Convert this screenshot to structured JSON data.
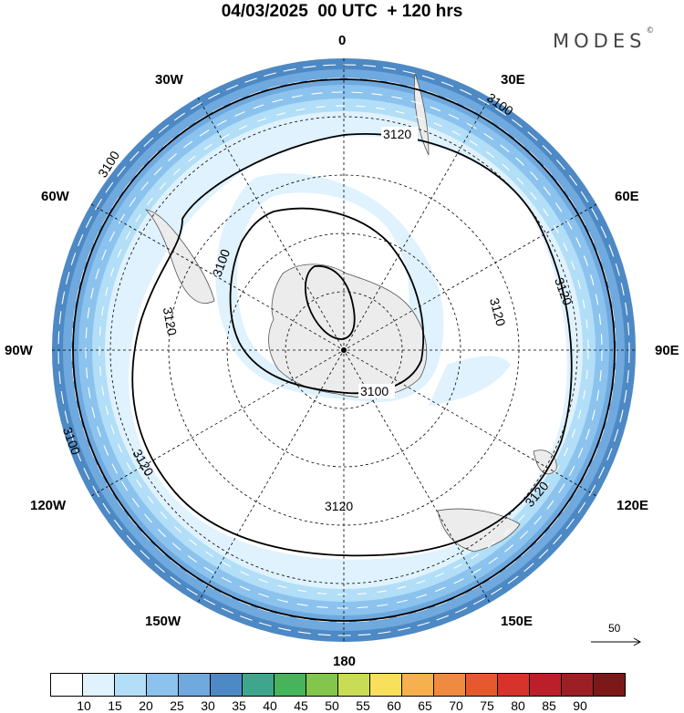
{
  "title": "04/03/2025  00 UTC  + 120 hrs",
  "brand": {
    "name": "MODES",
    "mark": "©"
  },
  "map": {
    "projection": "south polar stereographic",
    "longitude_labels": [
      "0",
      "30E",
      "60E",
      "90E",
      "120E",
      "150E",
      "180",
      "150W",
      "120W",
      "90W",
      "60W",
      "30W"
    ],
    "contour_labels": [
      "3100",
      "3120"
    ],
    "shading_colors": [
      "#dff2fd",
      "#b2def7",
      "#8bc3ee",
      "#6fa9de",
      "#4d89c4"
    ]
  },
  "reference_vector": {
    "label": "50"
  },
  "colorbar": {
    "ticks": [
      "10",
      "15",
      "20",
      "25",
      "30",
      "35",
      "40",
      "45",
      "50",
      "55",
      "60",
      "65",
      "70",
      "75",
      "80",
      "85",
      "90"
    ],
    "colors": [
      "#ffffff",
      "#dff2fd",
      "#b2def7",
      "#8bc3ee",
      "#6fa9de",
      "#4d89c4",
      "#3ea68c",
      "#46b45a",
      "#82c64c",
      "#c9dc55",
      "#f8e05c",
      "#f6b04e",
      "#f08a3e",
      "#e6592f",
      "#d7332b",
      "#bc1f2a",
      "#9c1f24",
      "#7d1818"
    ]
  }
}
